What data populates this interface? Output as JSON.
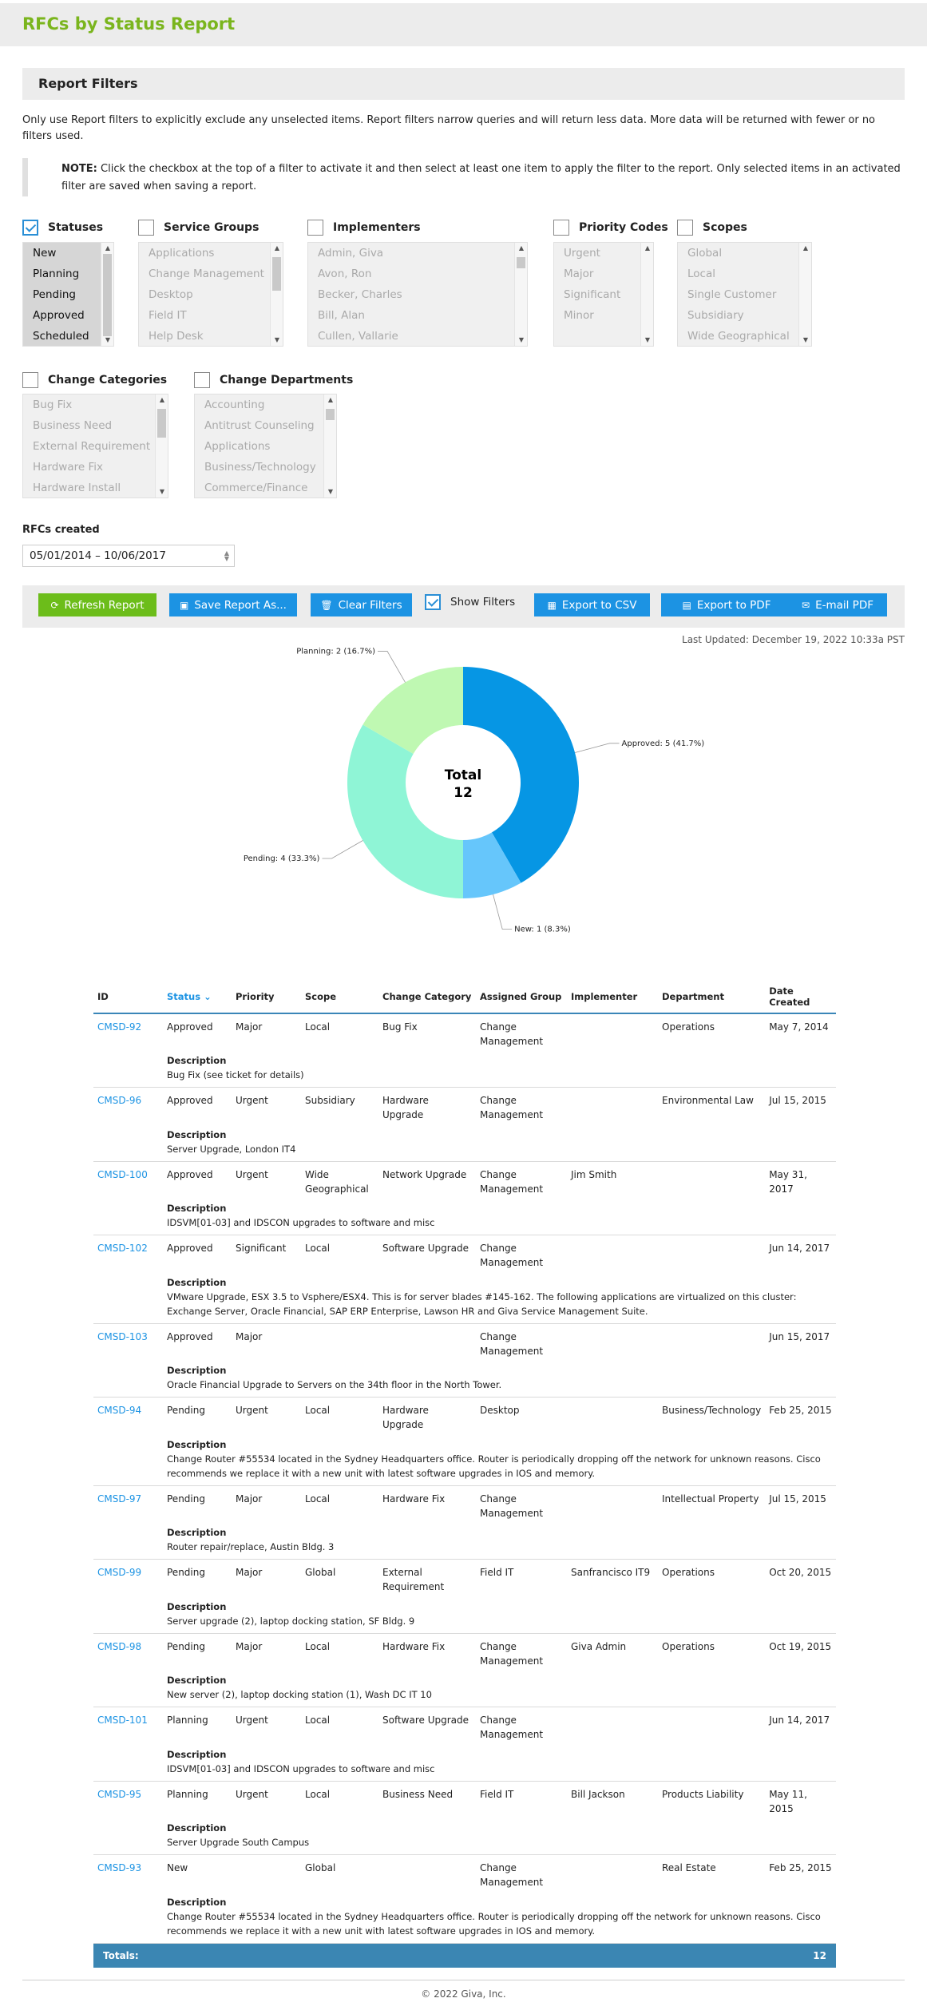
{
  "page": {
    "title": "RFCs by Status Report"
  },
  "filters": {
    "title": "Report Filters",
    "intro": "Only use Report filters to explicitly exclude any unselected items. Report filters narrow queries and will return less data. More data will be returned with fewer or no filters used.",
    "note_label": "NOTE:",
    "note_text": " Click the checkbox at the top of a filter to activate it and then select at least one item to apply the filter to the report. Only selected items in an activated filter are saved when saving a report.",
    "statuses": {
      "label": "Statuses",
      "checked": true,
      "items": [
        "New",
        "Planning",
        "Pending",
        "Approved",
        "Scheduled"
      ]
    },
    "service_groups": {
      "label": "Service Groups",
      "checked": false,
      "items": [
        "Applications",
        "Change Management",
        "Desktop",
        "Field IT",
        "Help Desk"
      ]
    },
    "implementers": {
      "label": "Implementers",
      "checked": false,
      "items": [
        "Admin, Giva",
        "Avon, Ron",
        "Becker, Charles",
        "Bill, Alan",
        "Cullen, Vallarie"
      ]
    },
    "priority_codes": {
      "label": "Priority Codes",
      "checked": false,
      "items": [
        "Urgent",
        "Major",
        "Significant",
        "Minor"
      ]
    },
    "scopes": {
      "label": "Scopes",
      "checked": false,
      "items": [
        "Global",
        "Local",
        "Single Customer",
        "Subsidiary",
        "Wide Geographical"
      ]
    },
    "change_categories": {
      "label": "Change Categories",
      "checked": false,
      "items": [
        "Bug Fix",
        "Business Need",
        "External Requirement",
        "Hardware Fix",
        "Hardware Install"
      ]
    },
    "change_departments": {
      "label": "Change Departments",
      "checked": false,
      "items": [
        "Accounting",
        "Antitrust Counseling",
        "Applications",
        "Business/Technology",
        "Commerce/Finance"
      ]
    },
    "rfcs_created": {
      "label": "RFCs created",
      "value": "05/01/2014 – 10/06/2017"
    }
  },
  "toolbar": {
    "refresh": "Refresh Report",
    "save_as": "Save Report As...",
    "clear": "Clear Filters",
    "show_filters": "Show Filters",
    "export_csv": "Export to CSV",
    "export_pdf": "Export to PDF",
    "email_pdf": "E-mail PDF"
  },
  "last_updated": "Last Updated: December 19, 2022 10:33a PST",
  "chart_data": {
    "type": "pie",
    "donut": true,
    "center_label": "Total",
    "total": 12,
    "slices": [
      {
        "name": "Approved",
        "value": 5,
        "percent": 41.7,
        "label": "Approved: 5 (41.7%)",
        "color": "#0696e4"
      },
      {
        "name": "New",
        "value": 1,
        "percent": 8.3,
        "label": "New: 1 (8.3%)",
        "color": "#66c6fb"
      },
      {
        "name": "Pending",
        "value": 4,
        "percent": 33.3,
        "label": "Pending: 4 (33.3%)",
        "color": "#8ff5d6"
      },
      {
        "name": "Planning",
        "value": 2,
        "percent": 16.7,
        "label": "Planning: 2 (16.7%)",
        "color": "#bff8b2"
      }
    ]
  },
  "table": {
    "columns": [
      "ID",
      "Status",
      "Priority",
      "Scope",
      "Change Category",
      "Assigned Group",
      "Implementer",
      "Department",
      "Date Created"
    ],
    "sorted_column": "Status",
    "description_label": "Description",
    "rows": [
      {
        "id": "CMSD-92",
        "status": "Approved",
        "priority": "Major",
        "scope": "Local",
        "category": "Bug Fix",
        "group": "Change Management",
        "implementer": "",
        "department": "Operations",
        "date": "May 7, 2014",
        "description": "Bug Fix (see ticket for details)"
      },
      {
        "id": "CMSD-96",
        "status": "Approved",
        "priority": "Urgent",
        "scope": "Subsidiary",
        "category": "Hardware Upgrade",
        "group": "Change Management",
        "implementer": "",
        "department": "Environmental Law",
        "date": "Jul 15, 2015",
        "description": "Server Upgrade, London IT4"
      },
      {
        "id": "CMSD-100",
        "status": "Approved",
        "priority": "Urgent",
        "scope": "Wide Geographical",
        "category": "Network Upgrade",
        "group": "Change Management",
        "implementer": "Jim Smith",
        "department": "",
        "date": "May 31, 2017",
        "description": "IDSVM[01-03] and IDSCON upgrades to software and misc"
      },
      {
        "id": "CMSD-102",
        "status": "Approved",
        "priority": "Significant",
        "scope": "Local",
        "category": "Software Upgrade",
        "group": "Change Management",
        "implementer": "",
        "department": "",
        "date": "Jun 14, 2017",
        "description": "VMware Upgrade, ESX 3.5 to Vsphere/ESX4. This is for server blades #145-162. The following applications are virtualized on this cluster: Exchange Server, Oracle Financial, SAP ERP Enterprise, Lawson HR and Giva Service Management Suite."
      },
      {
        "id": "CMSD-103",
        "status": "Approved",
        "priority": "Major",
        "scope": "",
        "category": "",
        "group": "Change Management",
        "implementer": "",
        "department": "",
        "date": "Jun 15, 2017",
        "description": "Oracle Financial Upgrade to Servers on the 34th floor in the North Tower."
      },
      {
        "id": "CMSD-94",
        "status": "Pending",
        "priority": "Urgent",
        "scope": "Local",
        "category": "Hardware Upgrade",
        "group": "Desktop",
        "implementer": "",
        "department": "Business/Technology",
        "date": "Feb 25, 2015",
        "description": "Change Router #55534 located in the Sydney Headquarters office. Router is periodically dropping off the network for unknown reasons. Cisco recommends we replace it with a new unit with latest software upgrades in IOS and memory."
      },
      {
        "id": "CMSD-97",
        "status": "Pending",
        "priority": "Major",
        "scope": "Local",
        "category": "Hardware Fix",
        "group": "Change Management",
        "implementer": "",
        "department": "Intellectual Property",
        "date": "Jul 15, 2015",
        "description": "Router repair/replace, Austin Bldg. 3"
      },
      {
        "id": "CMSD-99",
        "status": "Pending",
        "priority": "Major",
        "scope": "Global",
        "category": "External Requirement",
        "group": "Field IT",
        "implementer": "Sanfrancisco IT9",
        "department": "Operations",
        "date": "Oct 20, 2015",
        "description": "Server upgrade (2), laptop docking station, SF Bldg. 9"
      },
      {
        "id": "CMSD-98",
        "status": "Pending",
        "priority": "Major",
        "scope": "Local",
        "category": "Hardware Fix",
        "group": "Change Management",
        "implementer": "Giva Admin",
        "department": "Operations",
        "date": "Oct 19, 2015",
        "description": "New server (2), laptop docking station (1), Wash DC IT 10"
      },
      {
        "id": "CMSD-101",
        "status": "Planning",
        "priority": "Urgent",
        "scope": "Local",
        "category": "Software Upgrade",
        "group": "Change Management",
        "implementer": "",
        "department": "",
        "date": "Jun 14, 2017",
        "description": "IDSVM[01-03] and IDSCON upgrades to software and misc"
      },
      {
        "id": "CMSD-95",
        "status": "Planning",
        "priority": "Urgent",
        "scope": "Local",
        "category": "Business Need",
        "group": "Field IT",
        "implementer": "Bill Jackson",
        "department": "Products Liability",
        "date": "May 11, 2015",
        "description": "Server Upgrade South Campus"
      },
      {
        "id": "CMSD-93",
        "status": "New",
        "priority": "",
        "scope": "Global",
        "category": "",
        "group": "Change Management",
        "implementer": "",
        "department": "Real Estate",
        "date": "Feb 25, 2015",
        "description": "Change Router #55534 located in the Sydney Headquarters office. Router is periodically dropping off the network for unknown reasons. Cisco recommends we replace it with a new unit with latest software upgrades in IOS and memory."
      }
    ],
    "totals_label": "Totals:",
    "totals_value": "12"
  },
  "footer": "© 2022 Giva, Inc."
}
